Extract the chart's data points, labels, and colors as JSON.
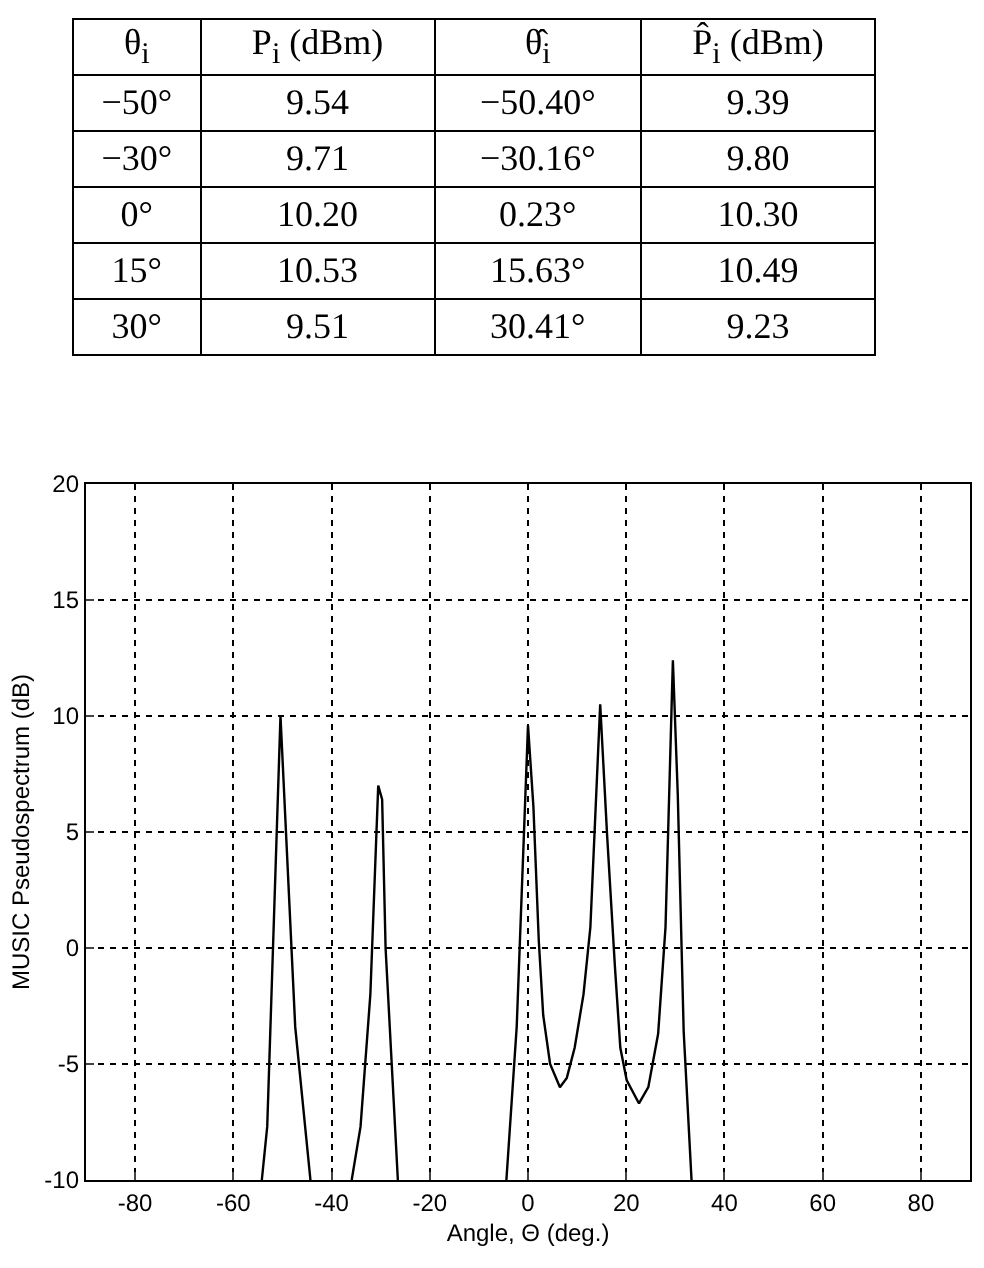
{
  "chart_data": [
    {
      "type": "other",
      "categories": [
        "θ$_{i}$",
        "P$_{i}$ (dBm)",
        "θ̂$_{i}$",
        "P̂$_{i}$ (dBm)"
      ],
      "cell_labels": [
        [
          "−50°",
          "9.54",
          "−50.40°",
          "9.39"
        ],
        [
          "−30°",
          "9.71",
          "−30.16°",
          "9.80"
        ],
        [
          "0°",
          "10.20",
          "0.23°",
          "10.30"
        ],
        [
          "15°",
          "10.53",
          "15.63°",
          "10.49"
        ],
        [
          "30°",
          "9.51",
          "30.41°",
          "9.23"
        ]
      ]
    },
    {
      "type": "line",
      "xlabel": "Angle, Θ (deg.)",
      "ylabel": "MUSIC Pseudospectrum (dB)",
      "x": [
        -54.2,
        -53.1,
        -50.4,
        -47.4,
        -44.3,
        -40,
        -35.9,
        -34.1,
        -32.1,
        -30.5,
        -29.7,
        -29.0,
        -26.5,
        -15,
        -4.4,
        -2.3,
        0,
        1.1,
        2.2,
        3.1,
        4.5,
        6.5,
        7.9,
        9.5,
        11.3,
        12.7,
        14.7,
        16.1,
        17.7,
        18.8,
        20.1,
        22.6,
        24.5,
        26.5,
        28.0,
        29.5,
        30.5,
        31.7,
        33.3
      ],
      "series": [
        {
          "color": "#000000",
          "values": [
            -10,
            -7.7,
            10,
            -3.4,
            -10,
            null,
            -10,
            -7.7,
            -2,
            7.0,
            6.4,
            0,
            -10,
            null,
            -10,
            -3.4,
            9.6,
            6.1,
            0.3,
            -2.9,
            -5.0,
            -6.0,
            -5.6,
            -4.3,
            -2.0,
            0.9,
            10.5,
            4.9,
            -0.8,
            -4.3,
            -5.7,
            -6.7,
            -6.0,
            -3.7,
            0.9,
            12.4,
            6.6,
            -3.6,
            -10
          ]
        }
      ],
      "xlim": [
        -90,
        90
      ],
      "xticks": [
        -80,
        -60,
        -40,
        -20,
        0,
        20,
        40,
        60,
        80
      ],
      "ylim": [
        -10,
        20
      ],
      "yticks": [
        -10,
        -5,
        0,
        5,
        10,
        15,
        20
      ],
      "grid": true,
      "line_style": "solid"
    }
  ]
}
